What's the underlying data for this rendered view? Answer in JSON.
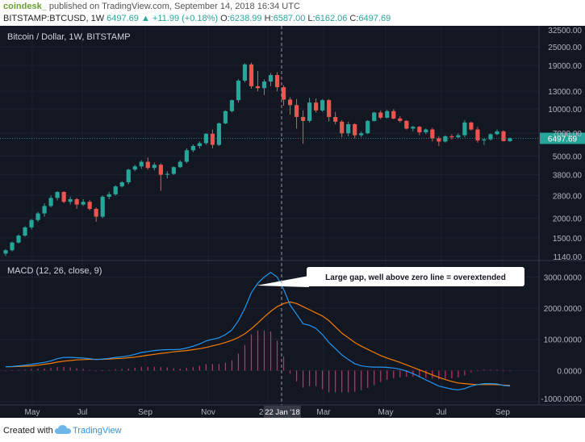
{
  "header": {
    "publisher": "coindesk_",
    "published_text": " published on TradingView.com, September 14, 2018 16:34 UTC",
    "symbol": "BITSTAMP:BTCUSD, 1W",
    "last": "6497.69",
    "change": "▲ +11.99 (+0.18%)",
    "o_label": "O:",
    "o_value": "6238.99",
    "h_label": "H:",
    "h_value": "6587.00",
    "l_label": "L:",
    "l_value": "6162.06",
    "c_label": "C:",
    "c_value": "6497.69"
  },
  "footer": {
    "created_with": "Created with",
    "brand": "TradingView"
  },
  "colors": {
    "background": "#131722",
    "up": "#26a69a",
    "down": "#ef5350",
    "macd_line": "#2196f3",
    "signal_line": "#f57c00",
    "hist_pos": "#e91e63",
    "hist_neg": "#e91e63",
    "grid": "#1e2230"
  },
  "chart_data": [
    {
      "type": "candlestick",
      "title": "Bitcoin / Dollar, 1W, BITSTAMP",
      "y_scale": "log",
      "ylim": [
        1140,
        32500
      ],
      "y_ticks": [
        "32500.00",
        "25000.00",
        "19000.00",
        "13000.00",
        "10000.00",
        "7000.00",
        "5000.00",
        "3800.00",
        "2800.00",
        "2000.00",
        "1500.00",
        "1140.00"
      ],
      "last_price_label": "6497.69",
      "last_price": 6497.69,
      "x_ticks": [
        "May",
        "Jul",
        "Sep",
        "Nov",
        "2018",
        "Mar",
        "May",
        "Jul",
        "Sep"
      ],
      "crosshair_label": "22 Jan '18",
      "candles": [
        [
          1190,
          1270,
          1150,
          1250
        ],
        [
          1250,
          1420,
          1230,
          1400
        ],
        [
          1400,
          1580,
          1380,
          1550
        ],
        [
          1550,
          1780,
          1530,
          1750
        ],
        [
          1750,
          1980,
          1700,
          1950
        ],
        [
          1950,
          2200,
          1900,
          2150
        ],
        [
          2150,
          2500,
          2050,
          2400
        ],
        [
          2400,
          2800,
          2350,
          2700
        ],
        [
          2700,
          2980,
          2600,
          2950
        ],
        [
          2950,
          2980,
          2500,
          2550
        ],
        [
          2550,
          2750,
          2450,
          2650
        ],
        [
          2650,
          2700,
          2300,
          2450
        ],
        [
          2450,
          2650,
          2400,
          2550
        ],
        [
          2550,
          2620,
          2250,
          2300
        ],
        [
          2300,
          2350,
          1900,
          2050
        ],
        [
          2050,
          2800,
          2000,
          2750
        ],
        [
          2750,
          2950,
          2650,
          2850
        ],
        [
          2850,
          3250,
          2800,
          3200
        ],
        [
          3200,
          3450,
          3150,
          3400
        ],
        [
          3400,
          4150,
          3300,
          4100
        ],
        [
          4100,
          4400,
          4000,
          4300
        ],
        [
          4300,
          4700,
          4150,
          4600
        ],
        [
          4600,
          4900,
          4100,
          4200
        ],
        [
          4200,
          4550,
          4050,
          4400
        ],
        [
          4400,
          4500,
          3000,
          3800
        ],
        [
          3800,
          4000,
          3600,
          3850
        ],
        [
          3850,
          4300,
          3800,
          4250
        ],
        [
          4250,
          4700,
          4200,
          4600
        ],
        [
          4600,
          5600,
          4500,
          5450
        ],
        [
          5450,
          5950,
          5300,
          5800
        ],
        [
          5800,
          6200,
          5600,
          6050
        ],
        [
          6050,
          7000,
          5900,
          6950
        ],
        [
          6950,
          7400,
          5600,
          5900
        ],
        [
          5900,
          8200,
          5800,
          8100
        ],
        [
          8100,
          9800,
          8000,
          9700
        ],
        [
          9700,
          11500,
          9500,
          11400
        ],
        [
          11400,
          15500,
          11000,
          15200
        ],
        [
          15200,
          19600,
          14800,
          19300
        ],
        [
          19300,
          19800,
          13500,
          14000
        ],
        [
          14000,
          17500,
          13000,
          13600
        ],
        [
          13600,
          15500,
          12300,
          15000
        ],
        [
          15000,
          17000,
          14000,
          16500
        ],
        [
          16500,
          17200,
          13000,
          13800
        ],
        [
          13800,
          14200,
          10500,
          11500
        ],
        [
          11500,
          11900,
          9200,
          10600
        ],
        [
          10600,
          11600,
          7500,
          8900
        ],
        [
          8900,
          9800,
          6000,
          8400
        ],
        [
          8400,
          11800,
          8200,
          11000
        ],
        [
          11000,
          11700,
          9500,
          9800
        ],
        [
          9800,
          11600,
          9600,
          11400
        ],
        [
          11400,
          11600,
          8300,
          8900
        ],
        [
          8900,
          9600,
          8000,
          8300
        ],
        [
          8300,
          8500,
          6600,
          7000
        ],
        [
          7000,
          8300,
          6700,
          8000
        ],
        [
          8000,
          8100,
          6500,
          6800
        ],
        [
          6800,
          7200,
          6600,
          7000
        ],
        [
          7000,
          8500,
          6900,
          8400
        ],
        [
          8400,
          9600,
          8300,
          9500
        ],
        [
          9500,
          9800,
          8600,
          8800
        ],
        [
          8800,
          9900,
          8700,
          9700
        ],
        [
          9700,
          10000,
          8600,
          8700
        ],
        [
          8700,
          9000,
          8200,
          8400
        ],
        [
          8400,
          8500,
          7400,
          7500
        ],
        [
          7500,
          7800,
          7200,
          7700
        ],
        [
          7700,
          7800,
          6800,
          7100
        ],
        [
          7100,
          7500,
          6900,
          7400
        ],
        [
          7400,
          7600,
          6200,
          6500
        ],
        [
          6500,
          6700,
          5800,
          6200
        ],
        [
          6200,
          6800,
          6100,
          6700
        ],
        [
          6700,
          6900,
          6400,
          6600
        ],
        [
          6600,
          7000,
          6500,
          6800
        ],
        [
          6800,
          8500,
          6600,
          8200
        ],
        [
          8200,
          8300,
          7300,
          7400
        ],
        [
          7400,
          7700,
          6100,
          6300
        ],
        [
          6300,
          6500,
          5900,
          6400
        ],
        [
          6400,
          7000,
          6300,
          6900
        ],
        [
          6900,
          7400,
          6800,
          7200
        ],
        [
          7200,
          7300,
          6200,
          6240
        ],
        [
          6240,
          6590,
          6160,
          6497.69
        ]
      ]
    },
    {
      "type": "line+bar",
      "title": "MACD (12, 26, close, 9)",
      "ylim": [
        -1000,
        3400
      ],
      "y_ticks": [
        "3000.0000",
        "2000.0000",
        "1000.0000",
        "0.0000",
        "-1000.0000"
      ],
      "annotation": "Large gap, well above zero line = overextended",
      "series": [
        {
          "name": "MACD",
          "values": [
            120,
            130,
            150,
            170,
            200,
            230,
            260,
            310,
            380,
            420,
            420,
            410,
            400,
            380,
            350,
            370,
            390,
            420,
            440,
            470,
            520,
            580,
            610,
            640,
            660,
            670,
            670,
            680,
            720,
            780,
            850,
            950,
            1000,
            1050,
            1150,
            1300,
            1600,
            2000,
            2500,
            2800,
            3000,
            3150,
            3000,
            2600,
            2100,
            1800,
            1500,
            1450,
            1350,
            1150,
            900,
            700,
            500,
            350,
            220,
            150,
            120,
            110,
            110,
            100,
            80,
            40,
            -20,
            -100,
            -200,
            -300,
            -400,
            -500,
            -550,
            -600,
            -620,
            -580,
            -500,
            -450,
            -420,
            -420,
            -430,
            -480,
            -500
          ]
        },
        {
          "name": "Signal",
          "values": [
            120,
            120,
            130,
            140,
            150,
            170,
            200,
            230,
            270,
            300,
            320,
            340,
            350,
            360,
            360,
            360,
            370,
            380,
            390,
            410,
            430,
            460,
            490,
            520,
            550,
            570,
            600,
            620,
            640,
            670,
            700,
            740,
            790,
            840,
            900,
            970,
            1060,
            1180,
            1340,
            1520,
            1720,
            1900,
            2050,
            2150,
            2200,
            2150,
            2050,
            1950,
            1850,
            1750,
            1600,
            1400,
            1200,
            1050,
            900,
            780,
            680,
            580,
            480,
            400,
            330,
            260,
            180,
            100,
            20,
            -60,
            -140,
            -220,
            -290,
            -350,
            -400,
            -420,
            -440,
            -450,
            -450,
            -450,
            -455,
            -470,
            -480
          ]
        },
        {
          "name": "Histogram",
          "values": [
            0,
            10,
            20,
            30,
            50,
            60,
            60,
            80,
            110,
            120,
            100,
            70,
            50,
            20,
            -10,
            10,
            20,
            40,
            50,
            60,
            90,
            120,
            120,
            120,
            110,
            100,
            70,
            60,
            80,
            110,
            150,
            210,
            210,
            210,
            250,
            330,
            540,
            820,
            1160,
            1280,
            1280,
            1250,
            950,
            450,
            -100,
            -350,
            -550,
            -500,
            -500,
            -600,
            -700,
            -700,
            -700,
            -700,
            -680,
            -630,
            -560,
            -470,
            -370,
            -300,
            -250,
            -220,
            -200,
            -200,
            -220,
            -240,
            -260,
            -280,
            -260,
            -250,
            -220,
            -160,
            -60,
            0,
            30,
            30,
            25,
            -10,
            -20
          ]
        }
      ]
    }
  ]
}
